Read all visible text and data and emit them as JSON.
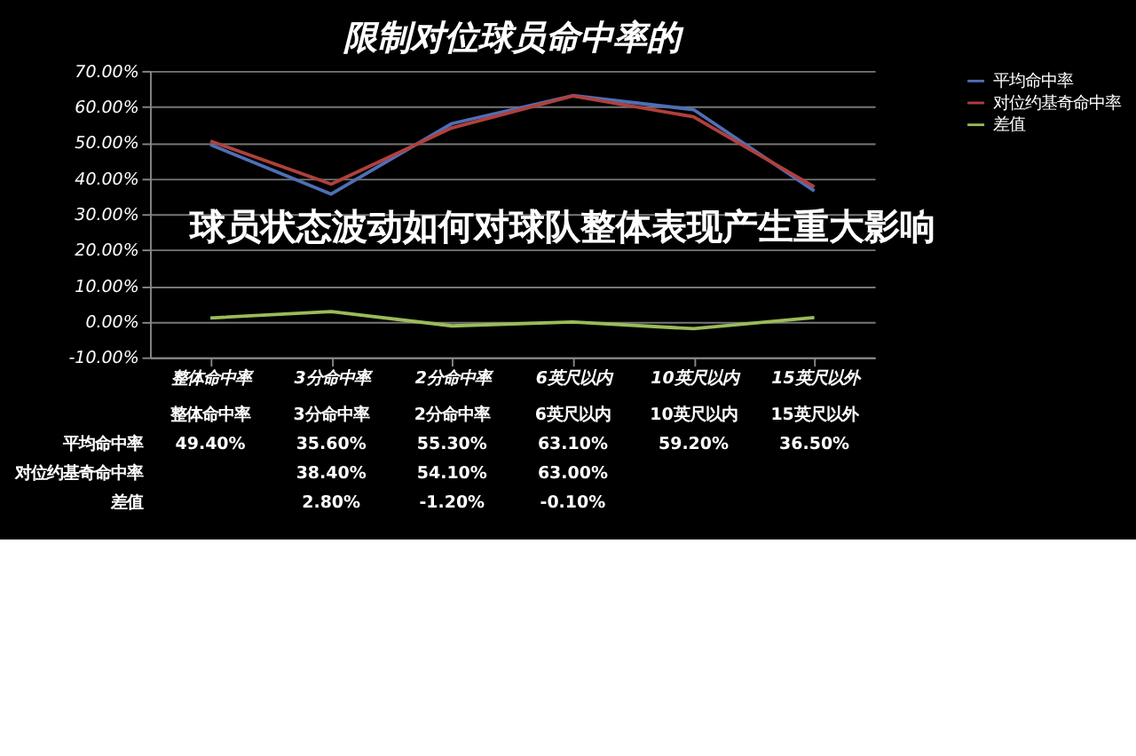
{
  "chart_data": {
    "type": "line",
    "title": "限制对位球员命中率的",
    "annotations": [
      "球员状态波动如何对球队整体表现产生重大影响"
    ],
    "categories": [
      "整体命中率",
      "3分命中率",
      "2分命中率",
      "6英尺以内",
      "10英尺以内",
      "15英尺以外"
    ],
    "series": [
      {
        "name": "平均命中率",
        "color": "#4f6fb5",
        "values": [
          49.4,
          35.6,
          55.3,
          63.1,
          59.2,
          36.5
        ],
        "value_labels": [
          "49.40%",
          "35.60%",
          "55.30%",
          "63.10%",
          "59.20%",
          "36.50%"
        ]
      },
      {
        "name": "对位约基奇命中率",
        "color": "#b0403c",
        "values": [
          50.4,
          38.4,
          54.1,
          63.0,
          57.2,
          37.6
        ],
        "value_labels": [
          null,
          "38.40%",
          "54.10%",
          "63.00%",
          null,
          null
        ]
      },
      {
        "name": "差值",
        "color": "#9bbb59",
        "values": [
          1.0,
          2.8,
          -1.2,
          -0.1,
          -2.0,
          1.1
        ],
        "value_labels": [
          null,
          "2.80%",
          "-1.20%",
          "-0.10%",
          null,
          null
        ]
      }
    ],
    "ylim": [
      -10,
      70
    ],
    "yticks": [
      {
        "value": -10,
        "label": "-10.00%"
      },
      {
        "value": 0,
        "label": "0.00%"
      },
      {
        "value": 10,
        "label": "10.00%"
      },
      {
        "value": 20,
        "label": "20.00%"
      },
      {
        "value": 30,
        "label": "30.00%"
      },
      {
        "value": 40,
        "label": "40.00%"
      },
      {
        "value": 50,
        "label": "50.00%"
      },
      {
        "value": 60,
        "label": "60.00%"
      },
      {
        "value": 70,
        "label": "70.00%"
      }
    ],
    "grid": "y",
    "legend": "right",
    "marker": "none",
    "line_style": "solid"
  }
}
